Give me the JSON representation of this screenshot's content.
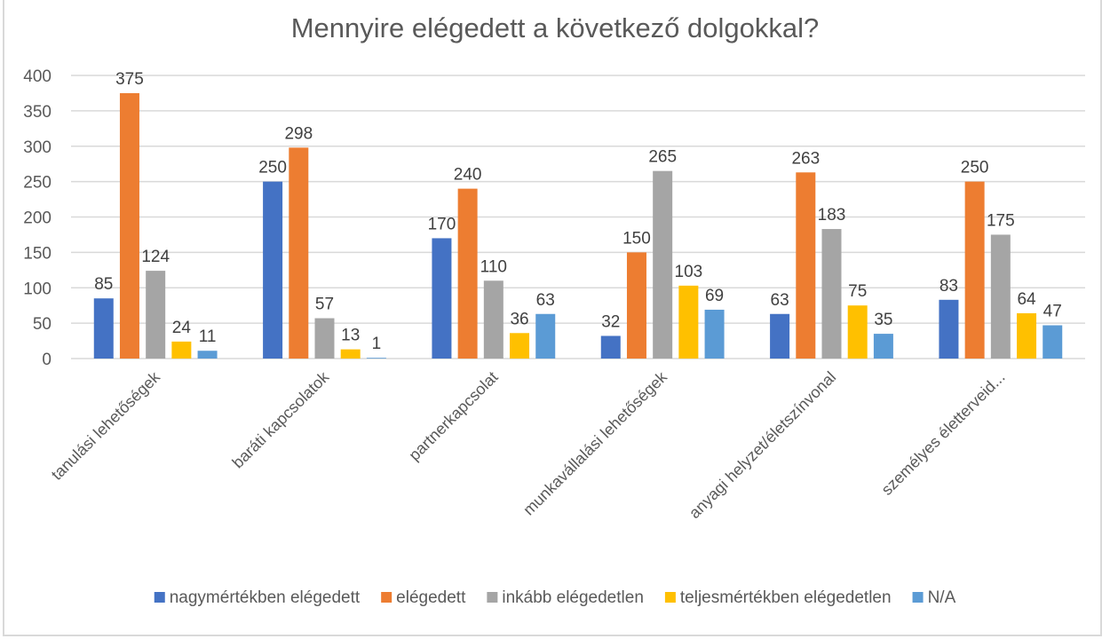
{
  "chart_data": {
    "type": "bar",
    "title": "Mennyire elégedett a következő dolgokkal?",
    "xlabel": "",
    "ylabel": "",
    "ylim": [
      0,
      400
    ],
    "yticks": [
      0,
      50,
      100,
      150,
      200,
      250,
      300,
      350,
      400
    ],
    "grid": true,
    "legend_position": "bottom",
    "categories": [
      "tanulási lehetőségek",
      "baráti kapcsolatok",
      "partnerkapcsolat",
      "munkavállalási lehetőségek",
      "anyagi helyzet/életszínvonal",
      "személyes életterveid..."
    ],
    "series": [
      {
        "name": "nagymértékben elégedett",
        "color": "#4472C4",
        "values": [
          85,
          250,
          170,
          32,
          63,
          83
        ]
      },
      {
        "name": "elégedett",
        "color": "#ED7D31",
        "values": [
          375,
          298,
          240,
          150,
          263,
          250
        ]
      },
      {
        "name": "inkább elégedetlen",
        "color": "#A5A5A5",
        "values": [
          124,
          57,
          110,
          265,
          183,
          175
        ]
      },
      {
        "name": "teljesmértékben elégedetlen",
        "color": "#FFC000",
        "values": [
          24,
          13,
          36,
          103,
          75,
          64
        ]
      },
      {
        "name": "N/A",
        "color": "#5B9BD5",
        "values": [
          11,
          1,
          63,
          69,
          35,
          47
        ]
      }
    ]
  }
}
